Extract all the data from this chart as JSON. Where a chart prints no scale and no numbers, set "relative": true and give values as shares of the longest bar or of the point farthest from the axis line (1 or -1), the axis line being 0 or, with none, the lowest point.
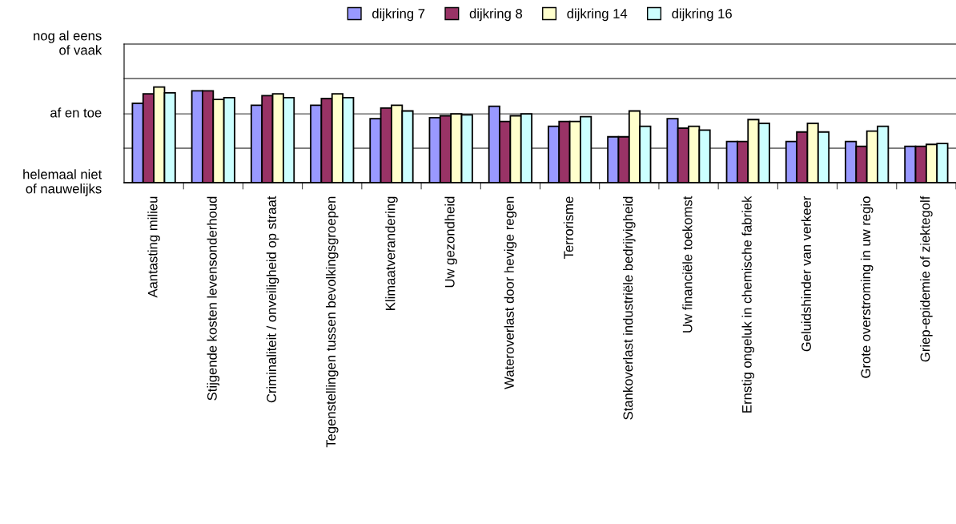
{
  "chart_data": {
    "type": "bar",
    "relative": true,
    "categories": [
      "Aantasting milieu",
      "Stijgende kosten levensonderhoud",
      "Criminaliteit / onveiligheid op straat",
      "Tegenstellingen tussen bevolkingsgroepen",
      "Klimaatverandering",
      "Uw gezondheid",
      "Wateroverlast door hevige regen",
      "Terrorisme",
      "Stankoverlast industriële bedrijvigheid",
      "Uw financiële toekomst",
      "Ernstig ongeluk in chemische fabriek",
      "Geluidshinder van verkeer",
      "Grote overstroming in uw regio",
      "Griep-epidemie of ziektegolf"
    ],
    "series": [
      {
        "name": "dijkring 7",
        "color": "#9999ff",
        "values": [
          0.83,
          0.96,
          0.81,
          0.81,
          0.67,
          0.68,
          0.8,
          0.59,
          0.48,
          0.67,
          0.43,
          0.43,
          0.43,
          0.38
        ]
      },
      {
        "name": "dijkring 8",
        "color": "#993366",
        "values": [
          0.93,
          0.96,
          0.91,
          0.88,
          0.78,
          0.7,
          0.64,
          0.64,
          0.48,
          0.57,
          0.43,
          0.53,
          0.38,
          0.38
        ]
      },
      {
        "name": "dijkring 14",
        "color": "#ffffcc",
        "values": [
          1.0,
          0.87,
          0.93,
          0.93,
          0.81,
          0.72,
          0.7,
          0.64,
          0.75,
          0.59,
          0.66,
          0.62,
          0.54,
          0.4
        ]
      },
      {
        "name": "dijkring 16",
        "color": "#ccffff",
        "values": [
          0.94,
          0.89,
          0.89,
          0.89,
          0.75,
          0.71,
          0.72,
          0.69,
          0.59,
          0.55,
          0.62,
          0.53,
          0.59,
          0.41
        ]
      }
    ],
    "ref_lines": [
      {
        "axis": "y",
        "value": 0,
        "label": "helemaal niet\nof nauwelijks",
        "color": "#000000"
      },
      {
        "axis": "y",
        "value": 0.36,
        "label": null,
        "color": "#555555"
      },
      {
        "axis": "y",
        "value": 0.72,
        "label": "af en toe",
        "color": "#555555"
      },
      {
        "axis": "y",
        "value": 1.09,
        "label": null,
        "color": "#555555"
      },
      {
        "axis": "y",
        "value": 1.45,
        "label": "nog al eens\nof vaak",
        "color": "#555555"
      }
    ],
    "legend": "top"
  }
}
